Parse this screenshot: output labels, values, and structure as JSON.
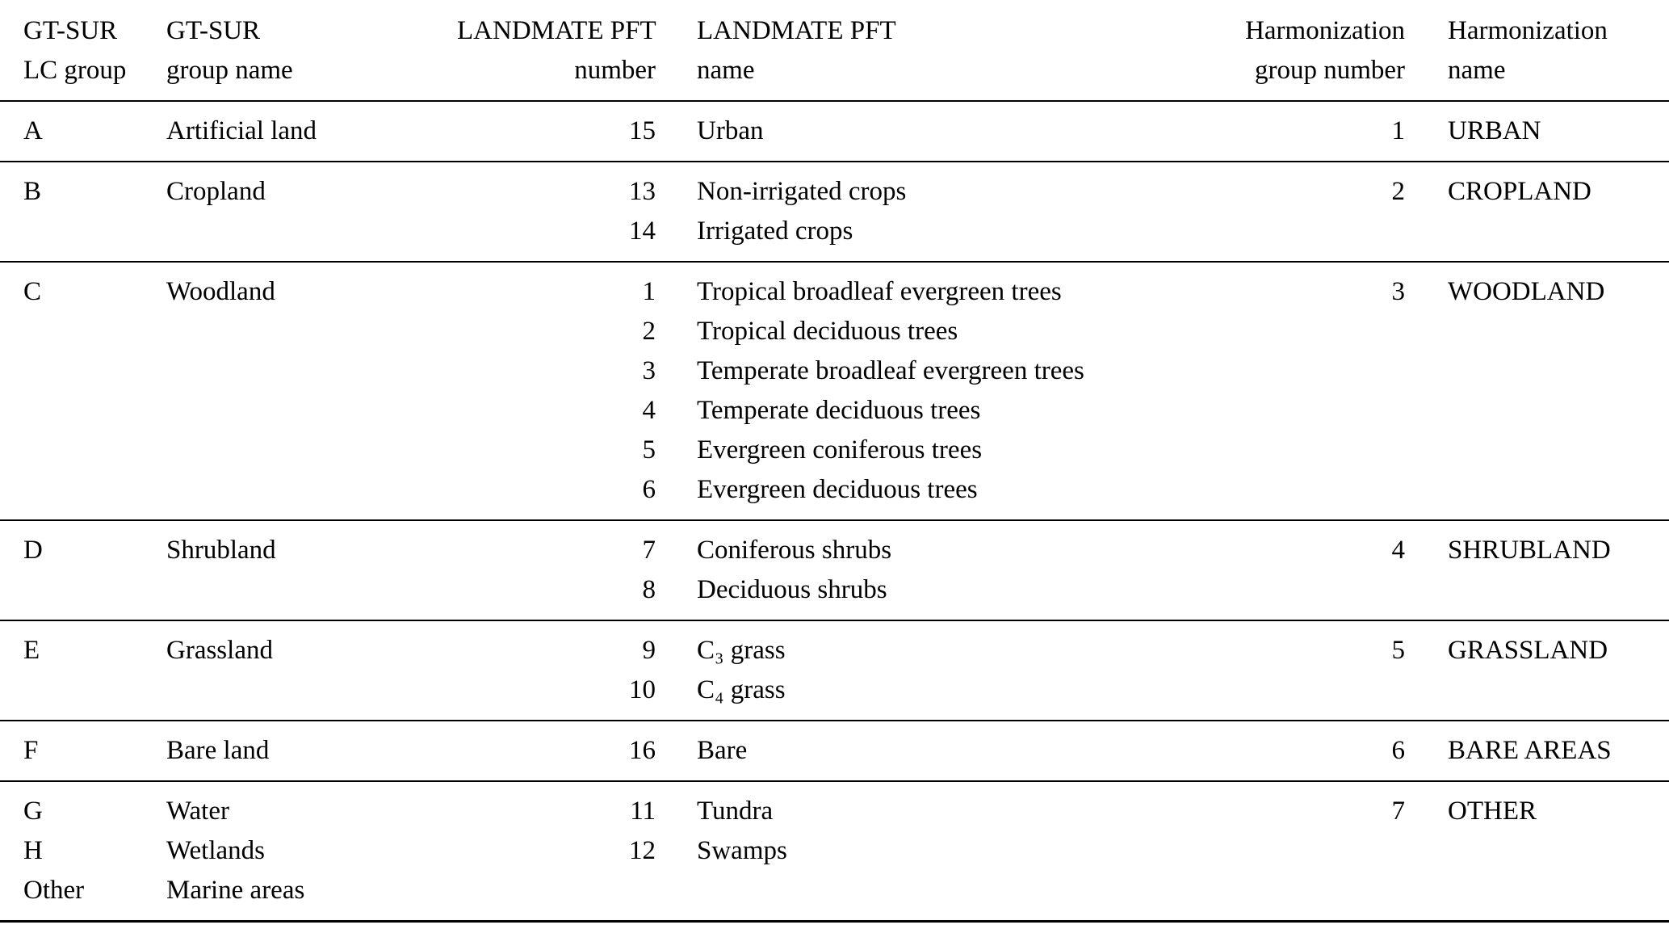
{
  "table": {
    "headers": {
      "col1": {
        "line1": "GT-SUR",
        "line2": "LC group"
      },
      "col2": {
        "line1": "GT-SUR",
        "line2": "group name"
      },
      "col3": {
        "line1": "LANDMATE PFT",
        "line2": "number"
      },
      "col4": {
        "line1": "LANDMATE PFT",
        "line2": "name"
      },
      "col5": {
        "line1": "Harmonization",
        "line2": "group number"
      },
      "col6": {
        "line1": "Harmonization",
        "line2": "name"
      }
    },
    "rows": [
      {
        "lc_groups": [
          "A"
        ],
        "group_names": [
          "Artificial land"
        ],
        "pft_numbers": [
          "15"
        ],
        "pft_names": [
          "Urban"
        ],
        "harmonization_group_number": "1",
        "harmonization_name": "URBAN"
      },
      {
        "lc_groups": [
          "B"
        ],
        "group_names": [
          "Cropland"
        ],
        "pft_numbers": [
          "13",
          "14"
        ],
        "pft_names": [
          "Non-irrigated crops",
          "Irrigated crops"
        ],
        "harmonization_group_number": "2",
        "harmonization_name": "CROPLAND"
      },
      {
        "lc_groups": [
          "C"
        ],
        "group_names": [
          "Woodland"
        ],
        "pft_numbers": [
          "1",
          "2",
          "3",
          "4",
          "5",
          "6"
        ],
        "pft_names": [
          "Tropical broadleaf evergreen trees",
          "Tropical deciduous trees",
          "Temperate broadleaf evergreen trees",
          "Temperate deciduous trees",
          "Evergreen coniferous trees",
          "Evergreen deciduous trees"
        ],
        "harmonization_group_number": "3",
        "harmonization_name": "WOODLAND"
      },
      {
        "lc_groups": [
          "D"
        ],
        "group_names": [
          "Shrubland"
        ],
        "pft_numbers": [
          "7",
          "8"
        ],
        "pft_names": [
          "Coniferous shrubs",
          "Deciduous shrubs"
        ],
        "harmonization_group_number": "4",
        "harmonization_name": "SHRUBLAND"
      },
      {
        "lc_groups": [
          "E"
        ],
        "group_names": [
          "Grassland"
        ],
        "pft_numbers": [
          "9",
          "10"
        ],
        "pft_names": [
          "C₃ grass",
          "C₄ grass"
        ],
        "harmonization_group_number": "5",
        "harmonization_name": "GRASSLAND"
      },
      {
        "lc_groups": [
          "F"
        ],
        "group_names": [
          "Bare land"
        ],
        "pft_numbers": [
          "16"
        ],
        "pft_names": [
          "Bare"
        ],
        "harmonization_group_number": "6",
        "harmonization_name": "BARE AREAS"
      },
      {
        "lc_groups": [
          "G",
          "H",
          "Other"
        ],
        "group_names": [
          "Water",
          "Wetlands",
          "Marine areas"
        ],
        "pft_numbers": [
          "11",
          "12"
        ],
        "pft_names": [
          "Tundra",
          "Swamps"
        ],
        "harmonization_group_number": "7",
        "harmonization_name": "OTHER"
      }
    ]
  }
}
